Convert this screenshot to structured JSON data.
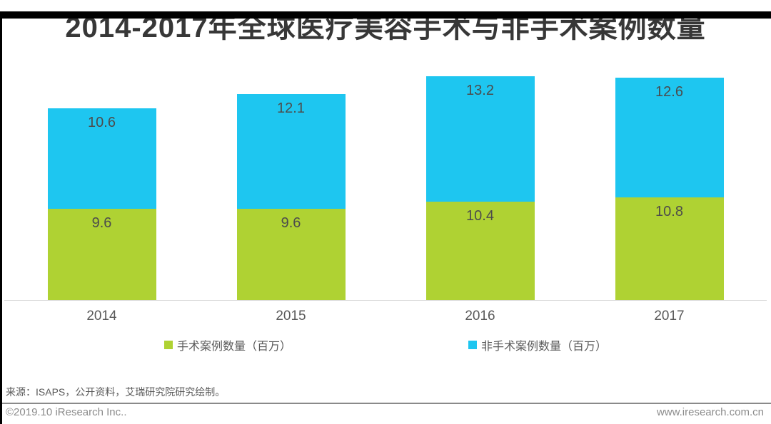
{
  "title": "2014-2017年全球医疗美容手术与非手术案例数量",
  "chart_data": {
    "type": "bar",
    "stacked": true,
    "title": "2014-2017年全球医疗美容手术与非手术案例数量",
    "categories": [
      "2014",
      "2015",
      "2016",
      "2017"
    ],
    "series": [
      {
        "name": "手术案例数量（百万）",
        "key": "surgical",
        "color": "#AFD233",
        "values": [
          9.6,
          9.6,
          10.4,
          10.8
        ]
      },
      {
        "name": "非手术案例数量（百万）",
        "key": "nonsurgical",
        "color": "#1EC6F0",
        "values": [
          10.6,
          12.1,
          13.2,
          12.6
        ]
      }
    ],
    "unit": "百万",
    "value_labels": true,
    "legend_position": "bottom",
    "xlabel": "",
    "ylabel": "",
    "ylim": [
      0,
      24.8
    ],
    "grid": false,
    "axis_line_color": "#d9d9d9"
  },
  "footer": {
    "source": "来源：ISAPS，公开资料，艾瑞研究院研究绘制。",
    "copyright": "©2019.10 iResearch Inc..",
    "website": "www.iresearch.com.cn"
  },
  "colors": {
    "surgical": "#AFD233",
    "nonsurgical": "#1EC6F0",
    "title_text": "#373737",
    "label_text": "#4c4c4c",
    "axis_text": "#595959",
    "footer_text": "#8c8c8c",
    "divider": "#8a8a8a",
    "border": "#000000"
  }
}
